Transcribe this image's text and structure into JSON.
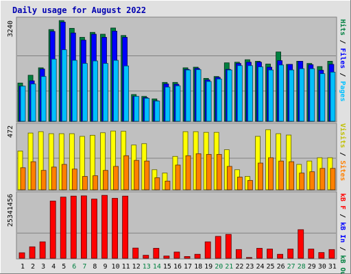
{
  "chart_data": {
    "type": "bar",
    "title": "Daily usage for August 2022",
    "days": [
      "1",
      "2",
      "3",
      "4",
      "5",
      "6",
      "7",
      "8",
      "9",
      "10",
      "11",
      "12",
      "13",
      "14",
      "15",
      "16",
      "17",
      "18",
      "19",
      "20",
      "21",
      "22",
      "23",
      "24",
      "25",
      "26",
      "27",
      "28",
      "29",
      "30",
      "31"
    ],
    "weekend_days": [
      "6",
      "7",
      "13",
      "14",
      "20",
      "21",
      "27",
      "28"
    ],
    "colors": {
      "hits": "#008040",
      "files": "#0000ff",
      "pages": "#00c0ff",
      "visits": "#ffff00",
      "sites": "#ff8000",
      "kbytes": "#ff0000",
      "weekday_label": "#000000",
      "weekend_label": "#008040",
      "title": "#0000b0",
      "panel_bg": "#c0c0c0",
      "gridline": "#808080",
      "outer_bg": "#e0e0e0"
    },
    "panels": [
      {
        "id": "hits_files_pages",
        "ymax": 3240,
        "ytick_label": "3240",
        "right_label": [
          {
            "text": "Hits",
            "color": "#008040"
          },
          {
            "text": " / ",
            "color": "#000000"
          },
          {
            "text": "Files",
            "color": "#0000ff"
          },
          {
            "text": " / ",
            "color": "#000000"
          },
          {
            "text": "Pages",
            "color": "#00c0ff"
          }
        ],
        "series": [
          {
            "name": "Hits",
            "color": "#008040",
            "values": [
              1230,
              1480,
              1720,
              2950,
              3240,
              2990,
              2700,
              2860,
              2800,
              3000,
              2760,
              860,
              800,
              720,
              1250,
              1250,
              1720,
              1740,
              1380,
              1440,
              1880,
              1900,
              1980,
              1930,
              1840,
              2230,
              1830,
              1930,
              1860,
              1760,
              1930
            ]
          },
          {
            "name": "Files",
            "color": "#0000ff",
            "values": [
              1130,
              1300,
              1680,
              2890,
              3190,
              2840,
              2610,
              2800,
              2700,
              2900,
              2700,
              800,
              760,
              660,
              1200,
              1190,
              1670,
              1700,
              1330,
              1410,
              1670,
              1860,
              1900,
              1900,
              1740,
              1950,
              1830,
              1930,
              1820,
              1640,
              1830
            ]
          },
          {
            "name": "Pages",
            "color": "#00c0ff",
            "values": [
              1130,
              1200,
              1440,
              2000,
              2300,
              1960,
              1860,
              1940,
              1860,
              1960,
              1780,
              800,
              740,
              650,
              1100,
              1140,
              1650,
              1660,
              1280,
              1360,
              1650,
              1790,
              1790,
              1750,
              1650,
              1810,
              1650,
              1690,
              1690,
              1530,
              1580
            ]
          }
        ]
      },
      {
        "id": "visits_sites",
        "ymax": 472,
        "ytick_label": "472",
        "right_label": [
          {
            "text": "Visits",
            "color": "#c0c000"
          },
          {
            "text": " / ",
            "color": "#000000"
          },
          {
            "text": "Sites",
            "color": "#ff8000"
          }
        ],
        "series": [
          {
            "name": "Visits",
            "color": "#ffff00",
            "values": [
              290,
              425,
              435,
              420,
              420,
              420,
              400,
              408,
              427,
              440,
              438,
              335,
              345,
              150,
              125,
              250,
              435,
              435,
              430,
              430,
              300,
              150,
              100,
              400,
              450,
              420,
              410,
              190,
              215,
              240,
              240
            ]
          },
          {
            "name": "Sites",
            "color": "#ff8000",
            "values": [
              165,
              210,
              145,
              170,
              190,
              155,
              100,
              105,
              145,
              175,
              255,
              220,
              215,
              90,
              65,
              185,
              255,
              270,
              265,
              265,
              175,
              95,
              70,
              200,
              240,
              215,
              210,
              125,
              135,
              160,
              160
            ]
          }
        ]
      },
      {
        "id": "kbytes",
        "ymax": 25341456,
        "ytick_label": "25341456",
        "right_label": [
          {
            "text": "kB F",
            "color": "#ff0000"
          },
          {
            "text": " / ",
            "color": "#000000"
          },
          {
            "text": "kB In",
            "color": "#0000ff"
          },
          {
            "text": " / ",
            "color": "#000000"
          },
          {
            "text": "kB Out",
            "color": "#008040"
          }
        ],
        "series": [
          {
            "name": "kB F",
            "color": "#ff0000",
            "values": [
              2200000,
              4600000,
              6600000,
              23000000,
              24600000,
              25000000,
              25100000,
              23800000,
              25300000,
              24100000,
              25000000,
              4100000,
              1200000,
              4000000,
              900000,
              2500000,
              700000,
              1600000,
              6600000,
              8800000,
              9600000,
              3500000,
              300000,
              4000000,
              3700000,
              1600000,
              3700000,
              11500000,
              3700000,
              2300000,
              3500000
            ]
          }
        ]
      }
    ]
  }
}
